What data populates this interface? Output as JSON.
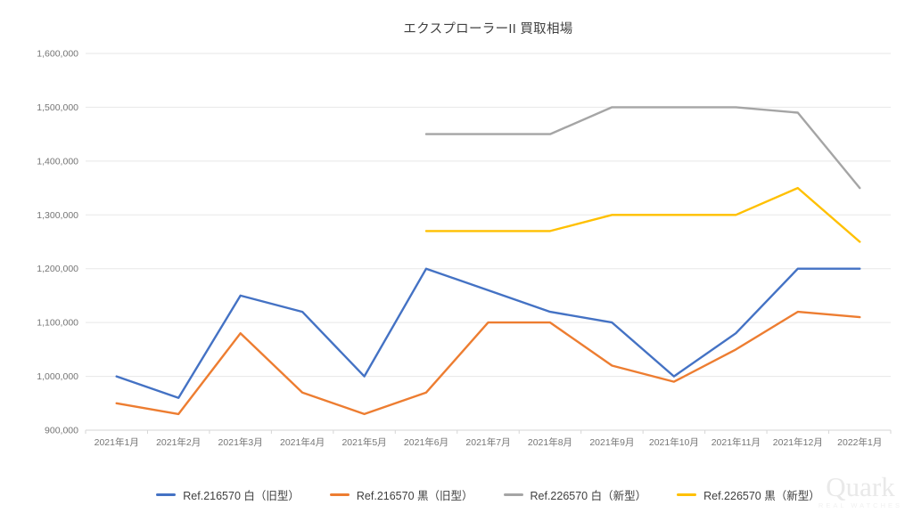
{
  "page": {
    "background": "#ffffff"
  },
  "watermark": {
    "brand": "Quark",
    "tagline": "Real Watches"
  },
  "chart_data": {
    "type": "line",
    "title": "エクスプローラーII 買取相場",
    "categories": [
      "2021年1月",
      "2021年2月",
      "2021年3月",
      "2021年4月",
      "2021年5月",
      "2021年6月",
      "2021年7月",
      "2021年8月",
      "2021年9月",
      "2021年10月",
      "2021年11月",
      "2021年12月",
      "2022年1月"
    ],
    "series": [
      {
        "name": "Ref.216570 白（旧型）",
        "color": "#4472C4",
        "values": [
          1000000,
          960000,
          1150000,
          1120000,
          1000000,
          1200000,
          1160000,
          1120000,
          1100000,
          1000000,
          1080000,
          1200000,
          1200000
        ]
      },
      {
        "name": "Ref.216570 黒（旧型）",
        "color": "#ED7D31",
        "values": [
          950000,
          930000,
          1080000,
          970000,
          930000,
          970000,
          1100000,
          1100000,
          1020000,
          990000,
          1050000,
          1120000,
          1110000
        ]
      },
      {
        "name": "Ref.226570 白（新型）",
        "color": "#A5A5A5",
        "values": [
          null,
          null,
          null,
          null,
          null,
          1450000,
          1450000,
          1450000,
          1500000,
          1500000,
          1500000,
          1490000,
          1350000
        ]
      },
      {
        "name": "Ref.226570 黒（新型）",
        "color": "#FFC000",
        "values": [
          null,
          null,
          null,
          null,
          null,
          1270000,
          1270000,
          1270000,
          1300000,
          1300000,
          1300000,
          1350000,
          1250000
        ]
      }
    ],
    "xlabel": "",
    "ylabel": "",
    "ylim": [
      900000,
      1600000
    ],
    "y_step": 100000,
    "grid": true,
    "legend_position": "bottom",
    "colors": {
      "gridline": "#e7e7e7",
      "axis_line": "#d6d6d6",
      "axis_text": "#757575",
      "title_text": "#404040"
    }
  }
}
